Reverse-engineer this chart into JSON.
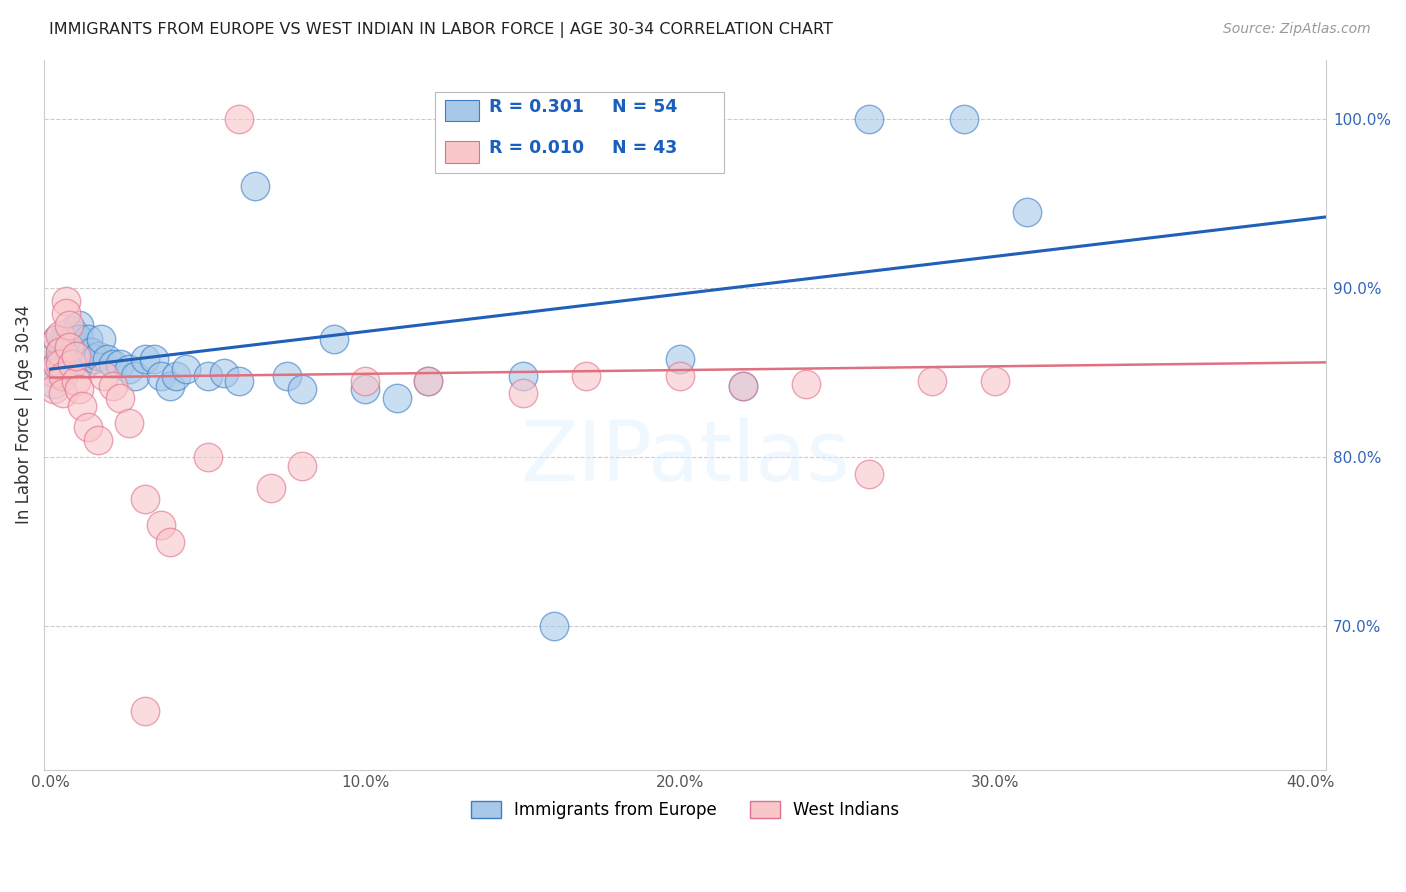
{
  "title": "IMMIGRANTS FROM EUROPE VS WEST INDIAN IN LABOR FORCE | AGE 30-34 CORRELATION CHART",
  "source": "Source: ZipAtlas.com",
  "ylabel": "In Labor Force | Age 30-34",
  "watermark": "ZIPatlas",
  "blue_R": "0.301",
  "blue_N": "54",
  "pink_R": "0.010",
  "pink_N": "43",
  "blue_fill": "#a8c8e8",
  "pink_fill": "#f9c6c9",
  "blue_edge": "#3a7ec8",
  "pink_edge": "#e07090",
  "blue_line": "#2060b8",
  "pink_line": "#e07080",
  "legend_text_color": "#1a5fbd",
  "blue_x": [
    0.001,
    0.002,
    0.002,
    0.003,
    0.003,
    0.003,
    0.004,
    0.004,
    0.004,
    0.005,
    0.005,
    0.006,
    0.006,
    0.007,
    0.007,
    0.008,
    0.008,
    0.009,
    0.009,
    0.01,
    0.011,
    0.012,
    0.013,
    0.014,
    0.015,
    0.016,
    0.018,
    0.02,
    0.022,
    0.025,
    0.027,
    0.03,
    0.033,
    0.035,
    0.038,
    0.04,
    0.043,
    0.05,
    0.055,
    0.06,
    0.065,
    0.075,
    0.08,
    0.09,
    0.1,
    0.11,
    0.12,
    0.15,
    0.16,
    0.2,
    0.22,
    0.26,
    0.29,
    0.31
  ],
  "blue_y": [
    0.843,
    0.855,
    0.87,
    0.862,
    0.858,
    0.85,
    0.87,
    0.865,
    0.855,
    0.87,
    0.86,
    0.868,
    0.862,
    0.875,
    0.868,
    0.872,
    0.865,
    0.878,
    0.87,
    0.86,
    0.855,
    0.87,
    0.862,
    0.858,
    0.86,
    0.87,
    0.858,
    0.855,
    0.855,
    0.852,
    0.848,
    0.858,
    0.858,
    0.848,
    0.842,
    0.848,
    0.852,
    0.848,
    0.85,
    0.845,
    0.96,
    0.848,
    0.84,
    0.87,
    0.84,
    0.835,
    0.845,
    0.848,
    0.7,
    0.858,
    0.842,
    1.0,
    1.0,
    0.945
  ],
  "pink_x": [
    0.001,
    0.001,
    0.002,
    0.002,
    0.003,
    0.003,
    0.003,
    0.004,
    0.004,
    0.005,
    0.005,
    0.006,
    0.006,
    0.007,
    0.008,
    0.008,
    0.009,
    0.01,
    0.012,
    0.015,
    0.017,
    0.02,
    0.022,
    0.025,
    0.03,
    0.035,
    0.038,
    0.05,
    0.07,
    0.08,
    0.1,
    0.12,
    0.15,
    0.17,
    0.2,
    0.22,
    0.24,
    0.26,
    0.28,
    0.3,
    0.03,
    0.06,
    0.13
  ],
  "pink_y": [
    0.85,
    0.84,
    0.87,
    0.855,
    0.872,
    0.862,
    0.855,
    0.848,
    0.838,
    0.892,
    0.885,
    0.878,
    0.865,
    0.855,
    0.845,
    0.86,
    0.84,
    0.83,
    0.818,
    0.81,
    0.848,
    0.842,
    0.835,
    0.82,
    0.775,
    0.76,
    0.75,
    0.8,
    0.782,
    0.795,
    0.845,
    0.845,
    0.838,
    0.848,
    0.848,
    0.842,
    0.843,
    0.79,
    0.845,
    0.845,
    0.65,
    1.0,
    1.0
  ],
  "xlim": [
    -0.002,
    0.405
  ],
  "ylim": [
    0.615,
    1.035
  ],
  "xtick_vals": [
    0.0,
    0.05,
    0.1,
    0.15,
    0.2,
    0.25,
    0.3,
    0.35,
    0.4
  ],
  "xtick_labels": [
    "0.0%",
    "",
    "10.0%",
    "",
    "20.0%",
    "",
    "30.0%",
    "",
    "40.0%"
  ],
  "ytick_vals": [
    0.7,
    0.8,
    0.9,
    1.0
  ],
  "ytick_labels": [
    "70.0%",
    "80.0%",
    "90.0%",
    "100.0%"
  ],
  "blue_trendline": [
    0.0,
    0.405,
    0.852,
    0.942
  ],
  "pink_trendline": [
    0.0,
    0.405,
    0.847,
    0.856
  ]
}
